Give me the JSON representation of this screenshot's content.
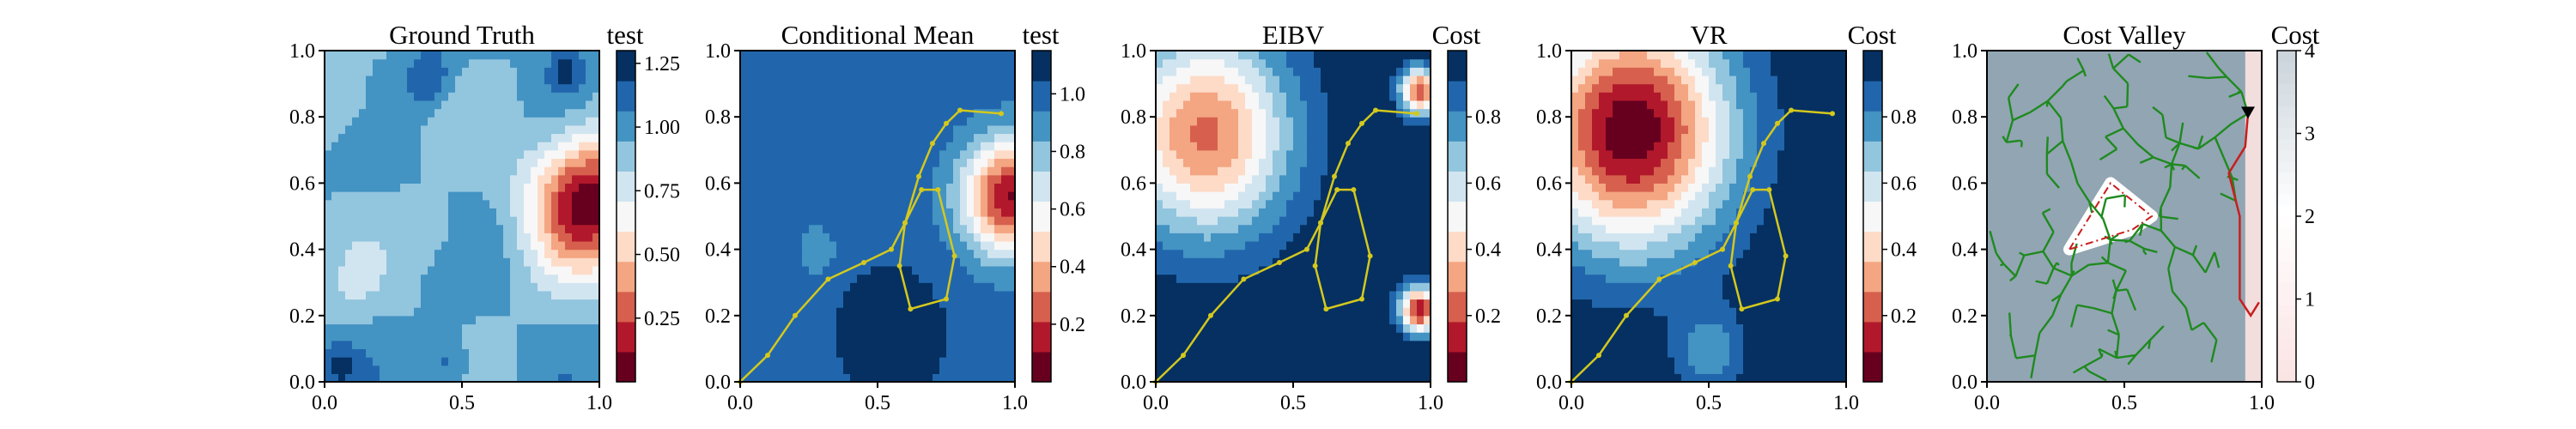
{
  "colors": {
    "rdbu_levels": [
      "#67001f",
      "#b2182b",
      "#d6604d",
      "#f4a582",
      "#fddbc7",
      "#f7f7f7",
      "#d1e5f0",
      "#92c5de",
      "#4393c3",
      "#2166ac",
      "#053061"
    ],
    "path_color": "#d4c81e",
    "tree_color": "#1f8a1f",
    "route_color": "#c81e1e",
    "marker_color": "#000000",
    "mesh_color": "#7f95a6"
  },
  "chart_data": [
    {
      "type": "heatmap",
      "title": "Ground Truth",
      "colorbar_label": "test",
      "colorbar_ticks": [
        "0.25",
        "0.50",
        "0.75",
        "1.00",
        "1.25"
      ],
      "colorbar_range": [
        0.0,
        1.3
      ],
      "x_ticks": [
        "0.0",
        "0.5",
        "1.0"
      ],
      "y_ticks": [
        "0.0",
        "0.2",
        "0.4",
        "0.6",
        "0.8",
        "1.0"
      ],
      "xlim": [
        0,
        1
      ],
      "ylim": [
        0,
        1
      ],
      "features": [
        {
          "kind": "hotspot",
          "x": 0.96,
          "y": 0.55,
          "value": 0.05,
          "spread": 0.14
        },
        {
          "kind": "dark",
          "x": 0.38,
          "y": 0.92,
          "value": 1.2,
          "spread": 0.06
        },
        {
          "kind": "dark",
          "x": 0.88,
          "y": 0.95,
          "value": 1.2,
          "spread": 0.05
        },
        {
          "kind": "dark",
          "x": 0.05,
          "y": 0.05,
          "value": 1.2,
          "spread": 0.05
        },
        {
          "kind": "dark",
          "x": 0.45,
          "y": 0.05,
          "value": 1.15,
          "spread": 0.06
        },
        {
          "kind": "light",
          "x": 0.08,
          "y": 0.85,
          "value": 0.8,
          "spread": 0.08
        },
        {
          "kind": "light",
          "x": 0.4,
          "y": 0.45,
          "value": 0.85,
          "spread": 0.07
        },
        {
          "kind": "light",
          "x": 0.1,
          "y": 0.3,
          "value": 0.85,
          "spread": 0.07
        }
      ]
    },
    {
      "type": "heatmap",
      "title": "Conditional Mean",
      "colorbar_label": "test",
      "colorbar_ticks": [
        "0.2",
        "0.4",
        "0.6",
        "0.8",
        "1.0"
      ],
      "colorbar_range": [
        0.0,
        1.15
      ],
      "x_ticks": [
        "0.0",
        "0.5",
        "1.0"
      ],
      "y_ticks": [
        "0.0",
        "0.2",
        "0.4",
        "0.6",
        "0.8",
        "1.0"
      ],
      "xlim": [
        0,
        1
      ],
      "ylim": [
        0,
        1
      ],
      "features": [
        {
          "kind": "hotspot",
          "x": 0.98,
          "y": 0.56,
          "value": 0.1,
          "spread": 0.12
        },
        {
          "kind": "dark",
          "x": 0.55,
          "y": 0.15,
          "value": 1.15,
          "spread": 0.13
        },
        {
          "kind": "light",
          "x": 0.28,
          "y": 0.4,
          "value": 0.85,
          "spread": 0.05
        }
      ],
      "path": [
        [
          0.0,
          0.0
        ],
        [
          0.1,
          0.08
        ],
        [
          0.2,
          0.2
        ],
        [
          0.32,
          0.31
        ],
        [
          0.45,
          0.36
        ],
        [
          0.55,
          0.4
        ],
        [
          0.6,
          0.48
        ],
        [
          0.66,
          0.58
        ],
        [
          0.72,
          0.58
        ],
        [
          0.78,
          0.38
        ],
        [
          0.75,
          0.25
        ],
        [
          0.62,
          0.22
        ],
        [
          0.58,
          0.35
        ],
        [
          0.6,
          0.48
        ],
        [
          0.65,
          0.62
        ],
        [
          0.7,
          0.72
        ],
        [
          0.75,
          0.78
        ],
        [
          0.8,
          0.82
        ],
        [
          0.95,
          0.81
        ]
      ]
    },
    {
      "type": "heatmap",
      "title": "EIBV",
      "colorbar_label": "Cost",
      "colorbar_ticks": [
        "0.2",
        "0.4",
        "0.6",
        "0.8"
      ],
      "colorbar_range": [
        0.0,
        1.0
      ],
      "x_ticks": [
        "0.0",
        "0.5",
        "1.0"
      ],
      "y_ticks": [
        "0.0",
        "0.2",
        "0.4",
        "0.6",
        "0.8",
        "1.0"
      ],
      "xlim": [
        0,
        1
      ],
      "ylim": [
        0,
        1
      ],
      "features": [
        {
          "kind": "hotspot",
          "x": 0.18,
          "y": 0.75,
          "value": 0.25,
          "spread": 0.22
        },
        {
          "kind": "hotspot",
          "x": 0.96,
          "y": 0.22,
          "value": 0.1,
          "spread": 0.05
        },
        {
          "kind": "hotspot",
          "x": 0.96,
          "y": 0.88,
          "value": 0.2,
          "spread": 0.05
        }
      ],
      "path": [
        [
          0.0,
          0.0
        ],
        [
          0.1,
          0.08
        ],
        [
          0.2,
          0.2
        ],
        [
          0.32,
          0.31
        ],
        [
          0.45,
          0.36
        ],
        [
          0.55,
          0.4
        ],
        [
          0.6,
          0.48
        ],
        [
          0.66,
          0.58
        ],
        [
          0.72,
          0.58
        ],
        [
          0.78,
          0.38
        ],
        [
          0.75,
          0.25
        ],
        [
          0.62,
          0.22
        ],
        [
          0.58,
          0.35
        ],
        [
          0.6,
          0.48
        ],
        [
          0.65,
          0.62
        ],
        [
          0.7,
          0.72
        ],
        [
          0.75,
          0.78
        ],
        [
          0.8,
          0.82
        ],
        [
          0.95,
          0.81
        ]
      ]
    },
    {
      "type": "heatmap",
      "title": "VR",
      "colorbar_label": "Cost",
      "colorbar_ticks": [
        "0.2",
        "0.4",
        "0.6",
        "0.8"
      ],
      "colorbar_range": [
        0.0,
        1.0
      ],
      "x_ticks": [
        "0.0",
        "0.5",
        "1.0"
      ],
      "y_ticks": [
        "0.0",
        "0.2",
        "0.4",
        "0.6",
        "0.8",
        "1.0"
      ],
      "xlim": [
        0,
        1
      ],
      "ylim": [
        0,
        1
      ],
      "features": [
        {
          "kind": "hotspot",
          "x": 0.22,
          "y": 0.76,
          "value": 0.02,
          "spread": 0.25
        },
        {
          "kind": "dark",
          "x": 0.5,
          "y": 0.1,
          "value": 0.75,
          "spread": 0.09
        }
      ],
      "path": [
        [
          0.0,
          0.0
        ],
        [
          0.1,
          0.08
        ],
        [
          0.2,
          0.2
        ],
        [
          0.32,
          0.31
        ],
        [
          0.45,
          0.36
        ],
        [
          0.55,
          0.4
        ],
        [
          0.6,
          0.48
        ],
        [
          0.66,
          0.58
        ],
        [
          0.72,
          0.58
        ],
        [
          0.78,
          0.38
        ],
        [
          0.75,
          0.25
        ],
        [
          0.62,
          0.22
        ],
        [
          0.58,
          0.35
        ],
        [
          0.6,
          0.48
        ],
        [
          0.65,
          0.62
        ],
        [
          0.7,
          0.72
        ],
        [
          0.75,
          0.78
        ],
        [
          0.8,
          0.82
        ],
        [
          0.95,
          0.81
        ]
      ]
    },
    {
      "type": "heatmap",
      "title": "Cost Valley",
      "colorbar_label": "Cost",
      "colorbar_ticks": [
        "0",
        "1",
        "2",
        "3",
        "4"
      ],
      "colorbar_range": [
        0,
        4
      ],
      "x_ticks": [
        "0.0",
        "0.5",
        "1.0"
      ],
      "y_ticks": [
        "0.0",
        "0.2",
        "0.4",
        "0.6",
        "0.8",
        "1.0"
      ],
      "xlim": [
        0,
        1
      ],
      "ylim": [
        0,
        1
      ],
      "obstacle": [
        [
          0.3,
          0.4
        ],
        [
          0.45,
          0.6
        ],
        [
          0.6,
          0.5
        ],
        [
          0.53,
          0.46
        ]
      ],
      "route": [
        [
          0.95,
          0.81
        ],
        [
          0.94,
          0.71
        ],
        [
          0.88,
          0.63
        ],
        [
          0.92,
          0.5
        ],
        [
          0.92,
          0.25
        ],
        [
          0.96,
          0.2
        ],
        [
          0.99,
          0.24
        ]
      ],
      "marker": [
        0.95,
        0.81
      ]
    }
  ]
}
